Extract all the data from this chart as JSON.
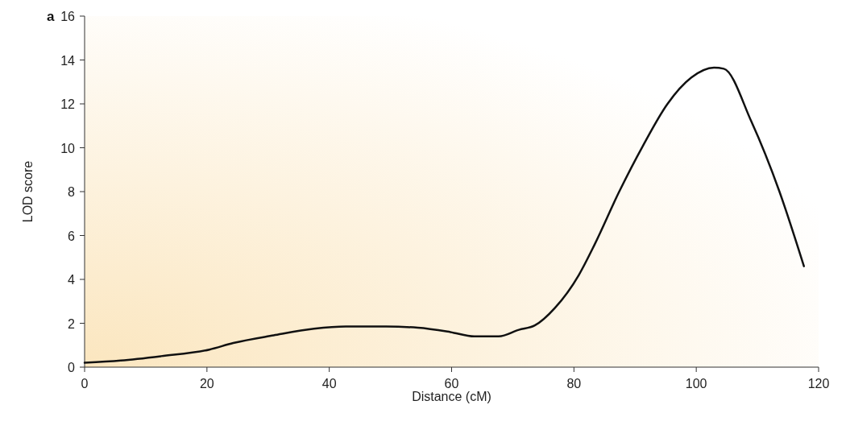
{
  "chart_data": {
    "type": "line",
    "xlabel": "Distance (cM)",
    "ylabel": "LOD score",
    "annotations": [
      "a"
    ],
    "xlim": [
      0,
      120
    ],
    "xticks": [
      0,
      20,
      40,
      60,
      80,
      100,
      120
    ],
    "ylim": [
      0,
      16
    ],
    "yticks": [
      0,
      2,
      4,
      6,
      8,
      10,
      12,
      14,
      16
    ],
    "grid": false,
    "marker": "none",
    "line_style": "solid",
    "series": [
      {
        "color": "#111111",
        "x": [
          0,
          5.9,
          12.5,
          20.4,
          24.3,
          30.9,
          37.5,
          42.7,
          49.3,
          54.5,
          59.8,
          63.7,
          67.7,
          71,
          73.6,
          76.9,
          80.8,
          83.4,
          87.4,
          91.3,
          95.3,
          99.2,
          102.9,
          104.5,
          109,
          113.6,
          117.6
        ],
        "values": [
          0.2,
          0.3,
          0.5,
          0.8,
          1.1,
          1.45,
          1.75,
          1.85,
          1.85,
          1.8,
          1.6,
          1.4,
          1.4,
          1.7,
          1.9,
          2.7,
          4.2,
          5.6,
          8.0,
          10.1,
          12.0,
          13.2,
          13.65,
          13.6,
          11.2,
          8.0,
          4.6
        ]
      }
    ]
  }
}
